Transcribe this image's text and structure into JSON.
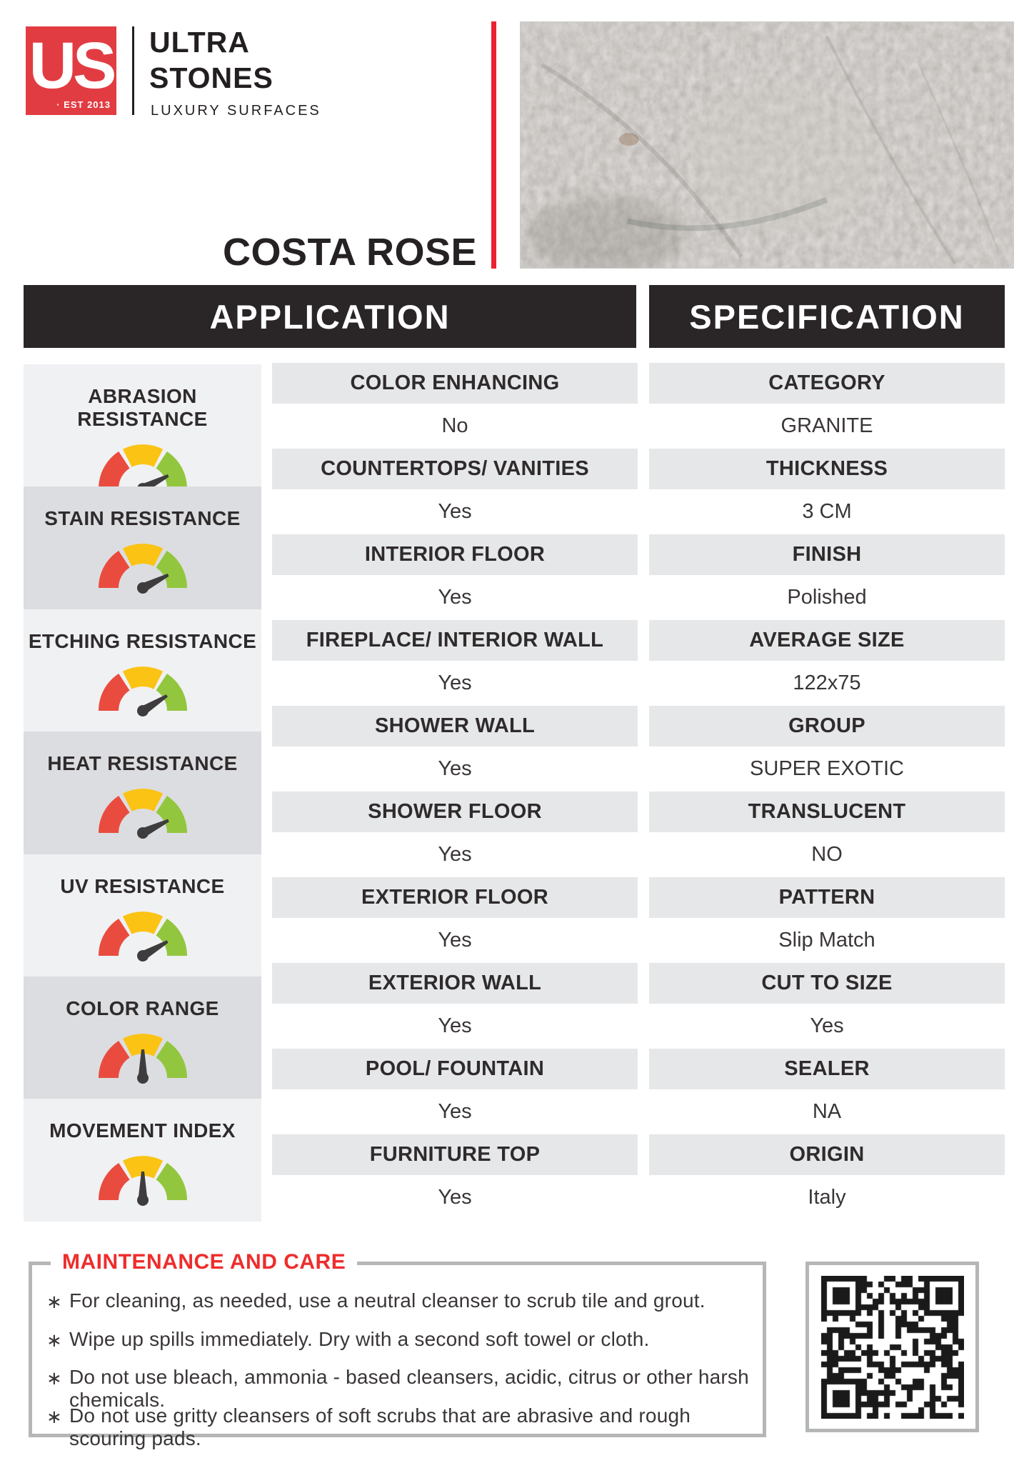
{
  "brand": {
    "logo_monogram": "US",
    "logo_est": "· EST 2013",
    "name_line1": "ULTRA",
    "name_line2": "STONES",
    "tagline": "LUXURY SURFACES"
  },
  "product": {
    "title": "COSTA ROSE"
  },
  "application": {
    "header": "APPLICATION",
    "gauges": [
      {
        "label": "ABRASION RESISTANCE",
        "needle_deg": 27
      },
      {
        "label": "STAIN RESISTANCE",
        "needle_deg": 27
      },
      {
        "label": "ETCHING RESISTANCE",
        "needle_deg": 32
      },
      {
        "label": "HEAT RESISTANCE",
        "needle_deg": 26
      },
      {
        "label": "UV RESISTANCE",
        "needle_deg": 30
      },
      {
        "label": "COLOR RANGE",
        "needle_deg": 90
      },
      {
        "label": "MOVEMENT INDEX",
        "needle_deg": 90
      }
    ],
    "rows": [
      {
        "label": "COLOR ENHANCING",
        "value": "No"
      },
      {
        "label": "COUNTERTOPS/ VANITIES",
        "value": "Yes"
      },
      {
        "label": "INTERIOR FLOOR",
        "value": "Yes"
      },
      {
        "label": "FIREPLACE/ INTERIOR WALL",
        "value": "Yes"
      },
      {
        "label": "SHOWER WALL",
        "value": "Yes"
      },
      {
        "label": "SHOWER FLOOR",
        "value": "Yes"
      },
      {
        "label": "EXTERIOR FLOOR",
        "value": "Yes"
      },
      {
        "label": "EXTERIOR WALL",
        "value": "Yes"
      },
      {
        "label": "POOL/ FOUNTAIN",
        "value": "Yes"
      },
      {
        "label": "FURNITURE TOP",
        "value": "Yes"
      }
    ]
  },
  "specification": {
    "header": "SPECIFICATION",
    "rows": [
      {
        "label": "CATEGORY",
        "value": "GRANITE"
      },
      {
        "label": "THICKNESS",
        "value": "3 CM"
      },
      {
        "label": "FINISH",
        "value": "Polished"
      },
      {
        "label": "AVERAGE SIZE",
        "value": "122x75"
      },
      {
        "label": "GROUP",
        "value": "SUPER EXOTIC"
      },
      {
        "label": "TRANSLUCENT",
        "value": "NO"
      },
      {
        "label": "PATTERN",
        "value": "Slip Match"
      },
      {
        "label": "CUT TO SIZE",
        "value": "Yes"
      },
      {
        "label": "SEALER",
        "value": "NA"
      },
      {
        "label": "ORIGIN",
        "value": "Italy"
      }
    ]
  },
  "maintenance": {
    "title": "MAINTENANCE AND CARE",
    "bullets": [
      "For cleaning, as needed, use a neutral cleanser to scrub tile and grout.",
      "Wipe up spills immediately. Dry with a second soft towel or cloth.",
      "Do not use bleach, ammonia - based cleansers, acidic, citrus or other harsh chemicals.",
      "Do not use gritty cleansers of soft scrubs that are abrasive and rough scouring pads."
    ]
  },
  "colors": {
    "logo_red": "#e23c43",
    "accent_red": "#ec2130",
    "maintenance_red": "#ee2d2c",
    "bar_bg": "#2a2627",
    "text_dark": "#2f2b2c",
    "row_header_bg": "#e6e7e9",
    "panel_light": "#f0f1f3",
    "panel_dark": "#dcdde0",
    "gauge_red": "#e94c3f",
    "gauge_yellow": "#fbc314",
    "gauge_green": "#93c63f",
    "gauge_needle": "#3e3c3d",
    "frame_gray": "#b5b6b8"
  }
}
